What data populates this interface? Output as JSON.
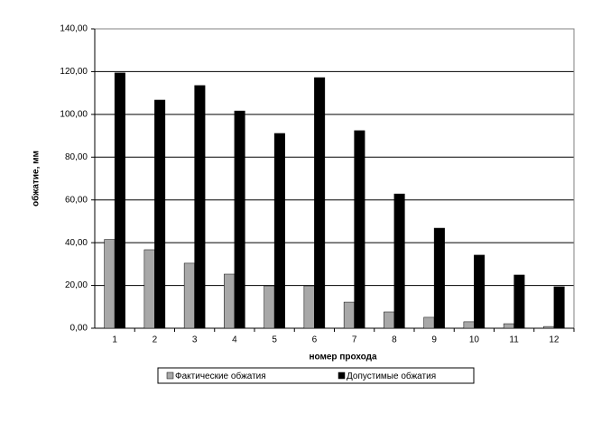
{
  "chart_data": {
    "type": "bar",
    "xlabel": "номер прохода",
    "ylabel": "обжатие, мм",
    "categories": [
      "1",
      "2",
      "3",
      "4",
      "5",
      "6",
      "7",
      "8",
      "9",
      "10",
      "11",
      "12"
    ],
    "series": [
      {
        "name": "Фактические обжатия",
        "color": "#a8a8a8",
        "values": [
          41.5,
          36.7,
          30.4,
          25.3,
          19.8,
          19.8,
          12.2,
          7.6,
          5.1,
          3.0,
          2.1,
          0.8
        ]
      },
      {
        "name": "Допустимые обжатия",
        "color": "#000000",
        "values": [
          119.4,
          106.7,
          113.5,
          101.6,
          91.1,
          117.2,
          92.4,
          62.8,
          46.8,
          34.2,
          24.9,
          19.4
        ]
      }
    ],
    "ylim": [
      0,
      140
    ],
    "yticks": [
      {
        "value": 0,
        "label": "0,00"
      },
      {
        "value": 20,
        "label": "20,00"
      },
      {
        "value": 40,
        "label": "40,00"
      },
      {
        "value": 60,
        "label": "60,00"
      },
      {
        "value": 80,
        "label": "80,00"
      },
      {
        "value": 100,
        "label": "100,00"
      },
      {
        "value": 120,
        "label": "120,00"
      },
      {
        "value": 140,
        "label": "140,00"
      }
    ],
    "grid": true,
    "legend": "bottom"
  }
}
